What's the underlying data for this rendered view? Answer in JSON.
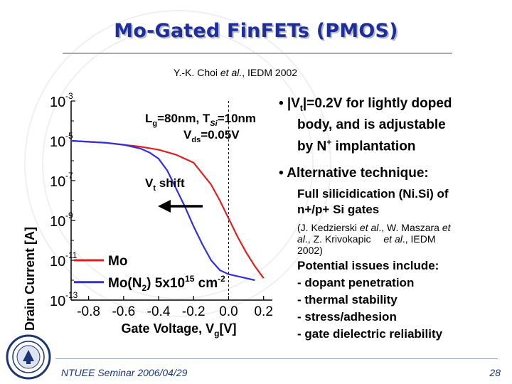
{
  "slide": {
    "title": "Mo-Gated FinFETs (PMOS)",
    "citation_authors": "Y.-K. Choi ",
    "citation_etal": "et al.",
    "citation_venue": ", IEDM 2002",
    "footer": "NTUEE Seminar 2006/04/29",
    "page_number": "28"
  },
  "bullets": {
    "b1_line1_pre": "• |V",
    "b1_line1_sub": "t",
    "b1_line1_post": "|=0.2V for lightly doped",
    "b1_line2": "body, and is adjustable",
    "b1_line3_pre": "by N",
    "b1_line3_sup": "+",
    "b1_line3_post": " implantation",
    "b2": "• Alternative technique:",
    "b2_sub1_line1": "Full silicidication (Ni.Si) of",
    "b2_sub1_line2": "n+/p+ Si gates",
    "b2_ref_line1_pre": "(J. Kedzierski ",
    "b2_ref_line1_etal": "et al",
    "b2_ref_line1_post": "., W. Maszara ",
    "b2_ref_line1_et": "et",
    "b2_ref_line2_pre": "al",
    "b2_ref_line2_post": "., Z. Krivokapic ",
    "b2_ref_line2_etal": "et al",
    "b2_ref_line2_end": "., IEDM",
    "b2_ref_line3": "2002)",
    "issues_title": "Potential issues include:",
    "issues": [
      "- dopant penetration",
      "- thermal stability",
      "- stress/adhesion",
      "- gate dielectric reliability"
    ]
  },
  "colors": {
    "title": "#1f2f9a",
    "mo_curve": "#e02020",
    "mo_ni_curve": "#3030e0",
    "footer": "#1d3578"
  },
  "chart_data": {
    "type": "line",
    "xlabel": "Gate Voltage, V",
    "xlabel_sub": "g",
    "xlabel_unit": "[V]",
    "ylabel": "Drain Current [A]",
    "xlim": [
      -0.9,
      0.25
    ],
    "ylim_log10": [
      -13,
      -3
    ],
    "x_ticks": [
      "-0.8",
      "-0.6",
      "-0.4",
      "-0.2",
      "0.0",
      "0.2"
    ],
    "x_tick_values": [
      -0.8,
      -0.6,
      -0.4,
      -0.2,
      0.0,
      0.2
    ],
    "y_ticks": [
      {
        "base": "10",
        "exp": "-3",
        "value": -3
      },
      {
        "base": "10",
        "exp": "-5",
        "value": -5
      },
      {
        "base": "10",
        "exp": "-7",
        "value": -7
      },
      {
        "base": "10",
        "exp": "-9",
        "value": -9
      },
      {
        "base": "10",
        "exp": "-11",
        "value": -11
      },
      {
        "base": "10",
        "exp": "-13",
        "value": -13
      }
    ],
    "reference_line_x": 0.0,
    "annotations": {
      "lg_pre": "L",
      "lg_sub": "g",
      "lg_mid": "=80nm, T",
      "lg_sub2": "Si",
      "lg_post": "=10nm",
      "vds_pre": "V",
      "vds_sub": "ds",
      "vds_post": "=0.05V",
      "vt_pre": "V",
      "vt_sub": "t",
      "vt_post": " shift"
    },
    "series": [
      {
        "name": "Mo",
        "x": [
          -0.9,
          -0.8,
          -0.7,
          -0.6,
          -0.5,
          -0.4,
          -0.3,
          -0.2,
          -0.1,
          -0.05,
          0.0,
          0.05,
          0.1,
          0.15,
          0.2
        ],
        "log10_y": [
          -5.0,
          -5.05,
          -5.1,
          -5.2,
          -5.3,
          -5.45,
          -5.7,
          -6.1,
          -7.2,
          -8.0,
          -8.9,
          -9.8,
          -10.6,
          -11.3,
          -11.9
        ]
      },
      {
        "name": "Mo(N",
        "name_post": ") 5x10",
        "name_exp": "15",
        "name_unit": " cm",
        "name_unit_exp": "-2",
        "x": [
          -0.9,
          -0.8,
          -0.7,
          -0.6,
          -0.5,
          -0.45,
          -0.4,
          -0.35,
          -0.3,
          -0.25,
          -0.2,
          -0.15,
          -0.1,
          -0.05,
          0.0,
          0.05,
          0.1,
          0.15
        ],
        "log10_y": [
          -5.0,
          -5.05,
          -5.1,
          -5.2,
          -5.4,
          -5.6,
          -5.9,
          -6.5,
          -7.4,
          -8.3,
          -9.3,
          -10.2,
          -11.0,
          -11.5,
          -11.7,
          -11.8,
          -11.9,
          -12.0
        ]
      }
    ]
  }
}
